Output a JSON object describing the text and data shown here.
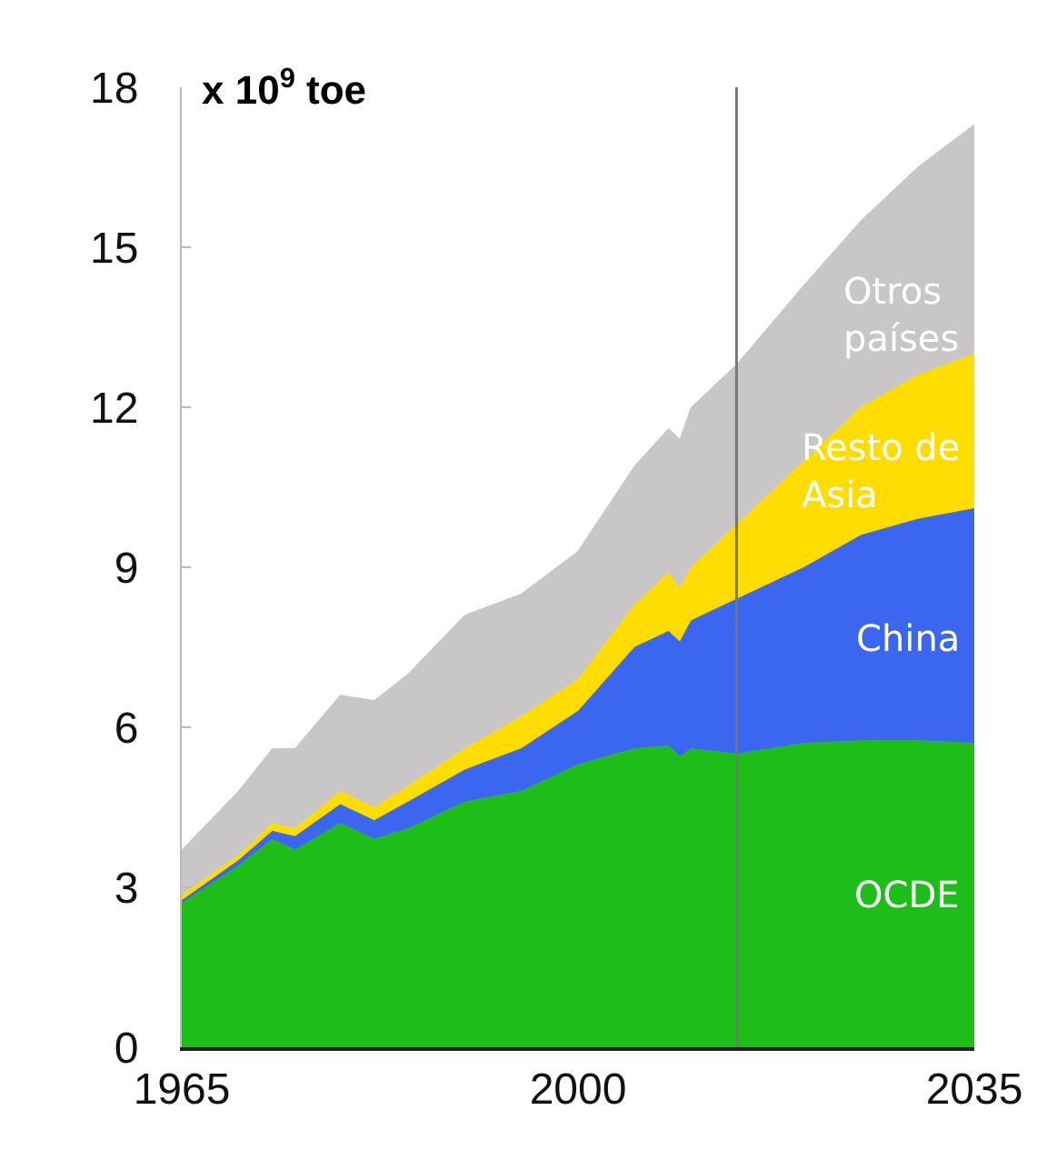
{
  "chart_data": {
    "type": "area",
    "stacked": true,
    "ylabel": "x 10$^{9}$ toe",
    "x": [
      1965,
      1970,
      1973,
      1975,
      1979,
      1982,
      1985,
      1990,
      1995,
      2000,
      2005,
      2008,
      2009,
      2010,
      2014,
      2020,
      2025,
      2030,
      2035
    ],
    "series": [
      {
        "name": "OCDE",
        "color": "#1fbd1a",
        "values": [
          2.7,
          3.4,
          3.9,
          3.7,
          4.2,
          3.9,
          4.1,
          4.6,
          4.8,
          5.3,
          5.6,
          5.65,
          5.45,
          5.6,
          5.5,
          5.7,
          5.75,
          5.75,
          5.7
        ]
      },
      {
        "name": "China",
        "color": "#3a66f0",
        "values": [
          0.05,
          0.1,
          0.15,
          0.25,
          0.35,
          0.35,
          0.5,
          0.6,
          0.8,
          1.0,
          1.9,
          2.15,
          2.15,
          2.4,
          2.9,
          3.3,
          3.85,
          4.15,
          4.4
        ]
      },
      {
        "name": "Resto de Asia",
        "color": "#ffdd00",
        "values": [
          0.1,
          0.1,
          0.15,
          0.15,
          0.25,
          0.25,
          0.3,
          0.4,
          0.6,
          0.6,
          0.8,
          1.1,
          1.0,
          1.0,
          1.4,
          2.0,
          2.4,
          2.7,
          2.9
        ]
      },
      {
        "name": "Otros países",
        "color": "#c8c6c6",
        "values": [
          0.85,
          1.2,
          1.4,
          1.5,
          1.8,
          2.0,
          2.1,
          2.5,
          2.3,
          2.4,
          2.6,
          2.7,
          2.8,
          3.0,
          3.0,
          3.3,
          3.5,
          3.9,
          4.3
        ]
      }
    ],
    "xlim": [
      1965,
      2035
    ],
    "xticks": [
      1965,
      2000,
      2035
    ],
    "ylim": [
      0,
      18
    ],
    "yticks": [
      0,
      3,
      6,
      9,
      12,
      15,
      18
    ],
    "ref_lines": [
      {
        "axis": "x",
        "value": 2014,
        "color": "#777777"
      }
    ],
    "grid": false,
    "legend": false
  }
}
